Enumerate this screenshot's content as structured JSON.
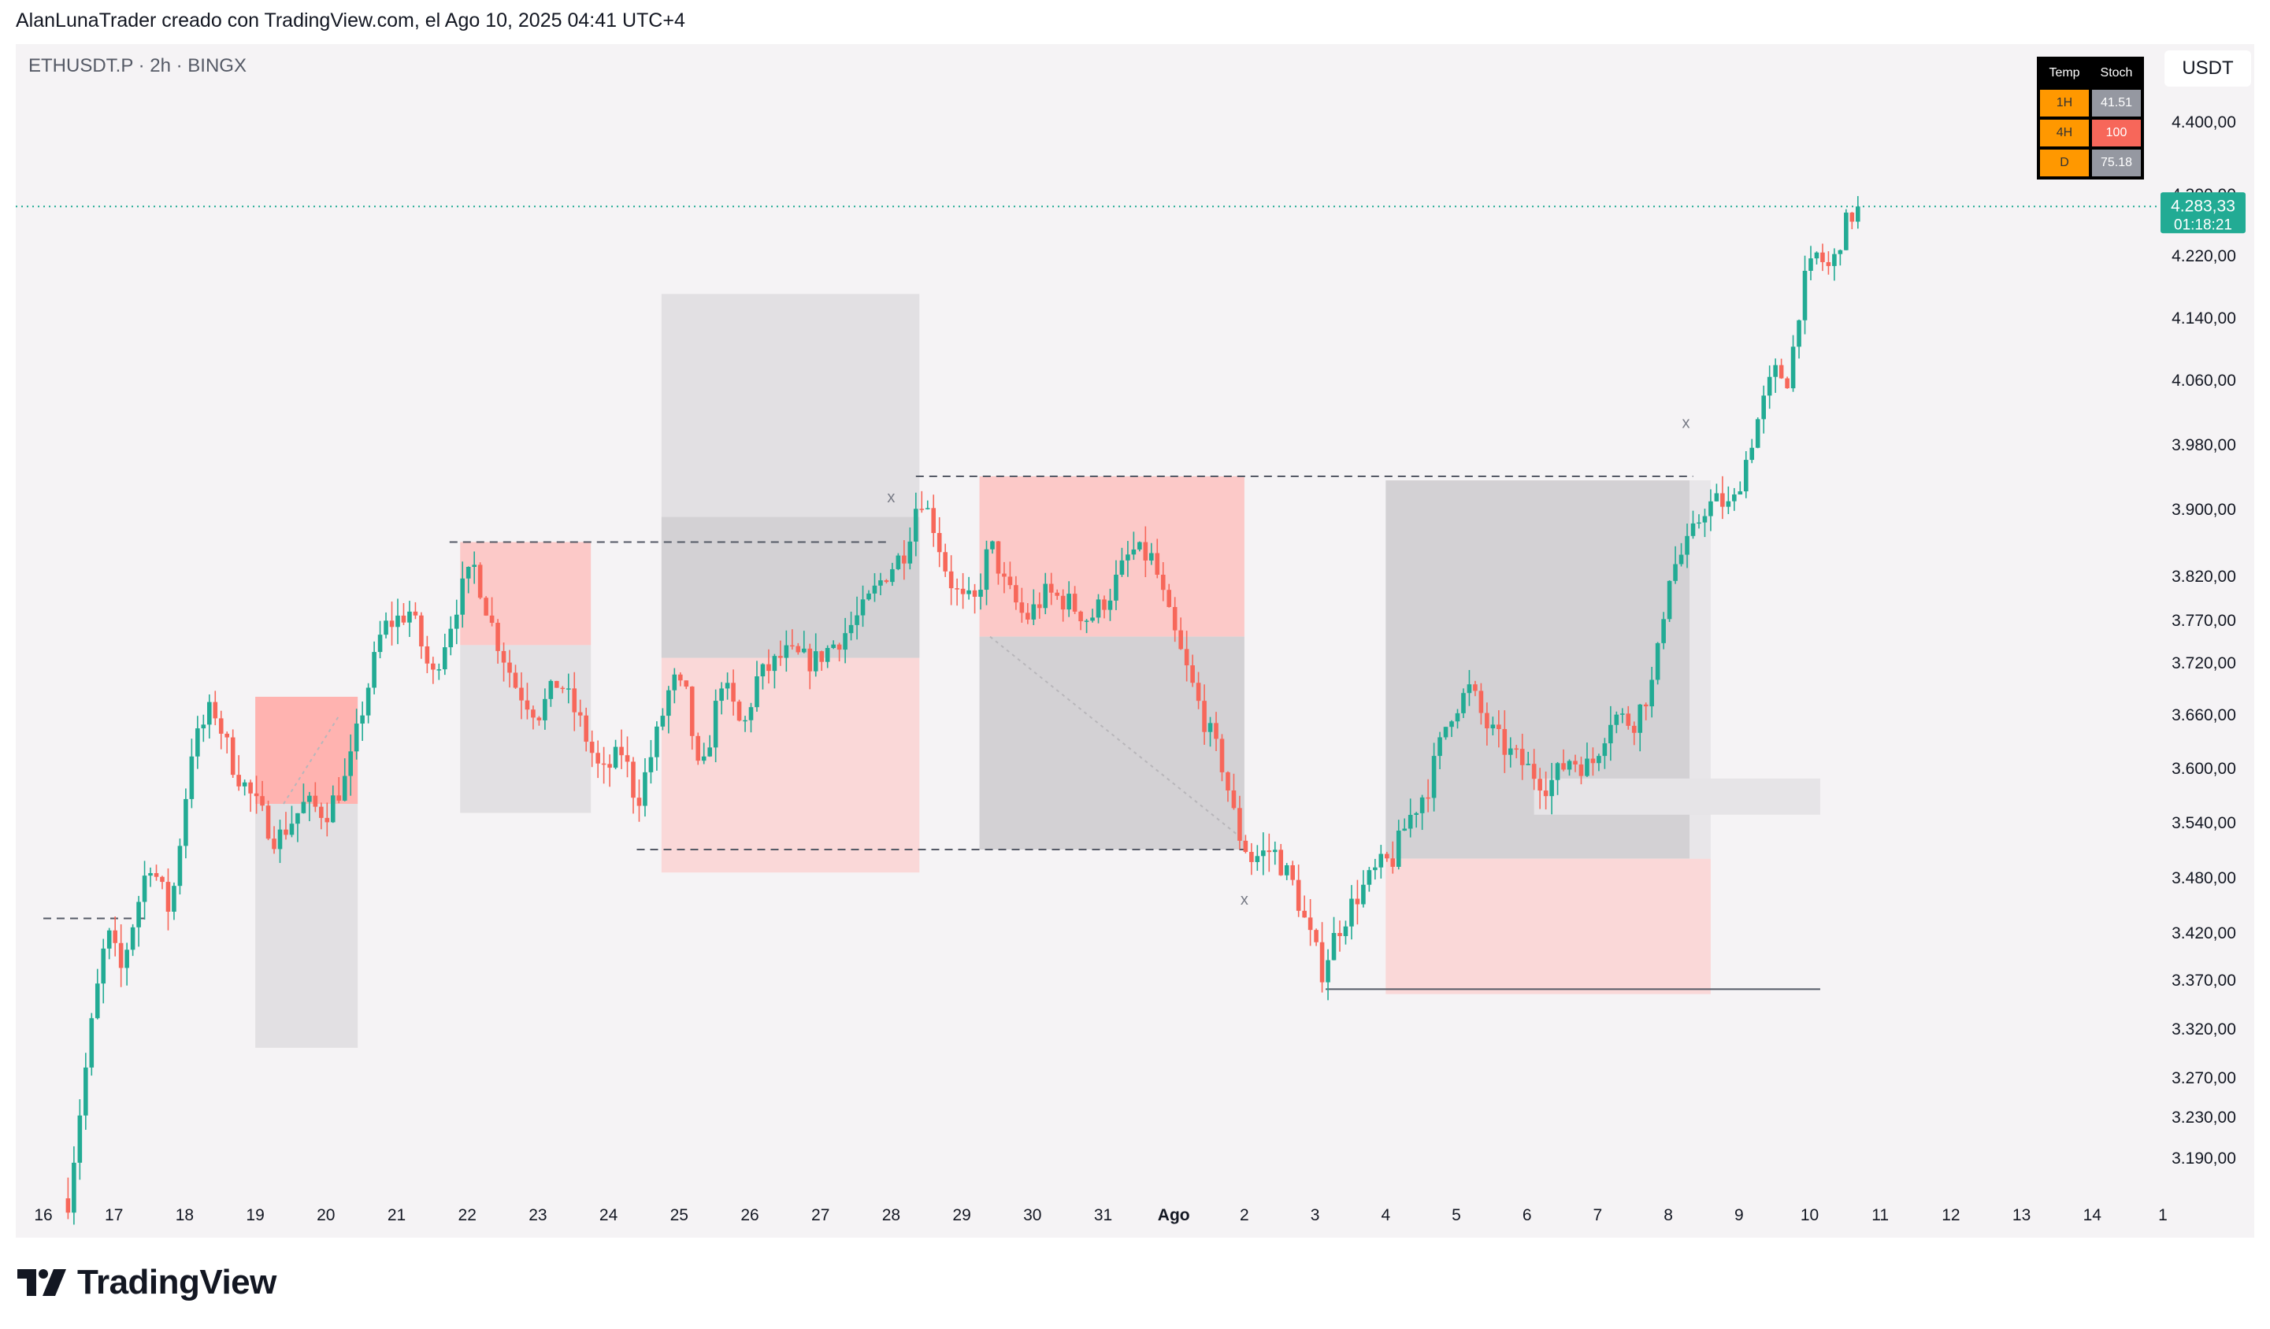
{
  "header": {
    "title": "AlanLunaTrader creado con TradingView.com, el Ago 10, 2025 04:41 UTC+4"
  },
  "symbol": {
    "label": "ETHUSDT.P · 2h · BINGX"
  },
  "currency_button": "USDT",
  "stoch_table": {
    "headers": [
      "Temp",
      "Stoch"
    ],
    "rows": [
      {
        "tf": "1H",
        "value": "41.51",
        "color": "#9598a1"
      },
      {
        "tf": "4H",
        "value": "100",
        "color": "#f7675a"
      },
      {
        "tf": "D",
        "value": "75.18",
        "color": "#9598a1"
      }
    ]
  },
  "price_badge": {
    "price": "4.283,33",
    "countdown": "01:18:21",
    "color": "#22ab94"
  },
  "logo": {
    "text": "TradingView",
    "icon": "tradingview-logo-icon"
  },
  "colors": {
    "up": "#22ab94",
    "down": "#f7675a",
    "bg": "#f5f3f5"
  },
  "chart_data": {
    "type": "candlestick",
    "y_ticks": [
      {
        "v": 4400,
        "label": "4.400,00"
      },
      {
        "v": 4300,
        "label": "4.300,00"
      },
      {
        "v": 4220,
        "label": "4.220,00"
      },
      {
        "v": 4140,
        "label": "4.140,00"
      },
      {
        "v": 4060,
        "label": "4.060,00"
      },
      {
        "v": 3980,
        "label": "3.980,00"
      },
      {
        "v": 3900,
        "label": "3.900,00"
      },
      {
        "v": 3820,
        "label": "3.820,00"
      },
      {
        "v": 3770,
        "label": "3.770,00"
      },
      {
        "v": 3720,
        "label": "3.720,00"
      },
      {
        "v": 3660,
        "label": "3.660,00"
      },
      {
        "v": 3600,
        "label": "3.600,00"
      },
      {
        "v": 3540,
        "label": "3.540,00"
      },
      {
        "v": 3480,
        "label": "3.480,00"
      },
      {
        "v": 3420,
        "label": "3.420,00"
      },
      {
        "v": 3370,
        "label": "3.370,00"
      },
      {
        "v": 3320,
        "label": "3.320,00"
      },
      {
        "v": 3270,
        "label": "3.270,00"
      },
      {
        "v": 3230,
        "label": "3.230,00"
      },
      {
        "v": 3190,
        "label": "3.190,00"
      }
    ],
    "x_ticks": [
      {
        "day": 16,
        "label": "16"
      },
      {
        "day": 17,
        "label": "17"
      },
      {
        "day": 18,
        "label": "18"
      },
      {
        "day": 19,
        "label": "19"
      },
      {
        "day": 20,
        "label": "20"
      },
      {
        "day": 21,
        "label": "21"
      },
      {
        "day": 22,
        "label": "22"
      },
      {
        "day": 23,
        "label": "23"
      },
      {
        "day": 24,
        "label": "24"
      },
      {
        "day": 25,
        "label": "25"
      },
      {
        "day": 26,
        "label": "26"
      },
      {
        "day": 27,
        "label": "27"
      },
      {
        "day": 28,
        "label": "28"
      },
      {
        "day": 29,
        "label": "29"
      },
      {
        "day": 30,
        "label": "30"
      },
      {
        "day": 31,
        "label": "31"
      },
      {
        "day": 32,
        "label": "Ago"
      },
      {
        "day": 33,
        "label": "2"
      },
      {
        "day": 34,
        "label": "3"
      },
      {
        "day": 35,
        "label": "4"
      },
      {
        "day": 36,
        "label": "5"
      },
      {
        "day": 37,
        "label": "6"
      },
      {
        "day": 38,
        "label": "7"
      },
      {
        "day": 39,
        "label": "8"
      },
      {
        "day": 40,
        "label": "9"
      },
      {
        "day": 41,
        "label": "10"
      },
      {
        "day": 42,
        "label": "11"
      },
      {
        "day": 43,
        "label": "12"
      },
      {
        "day": 44,
        "label": "13"
      },
      {
        "day": 45,
        "label": "14"
      },
      {
        "day": 46,
        "label": "1"
      }
    ],
    "last_price": 4283.33,
    "path": [
      [
        16.35,
        3150
      ],
      [
        16.7,
        3330
      ],
      [
        16.9,
        3420
      ],
      [
        17.1,
        3380
      ],
      [
        17.5,
        3500
      ],
      [
        17.8,
        3440
      ],
      [
        18.1,
        3620
      ],
      [
        18.4,
        3670
      ],
      [
        18.7,
        3600
      ],
      [
        19.0,
        3560
      ],
      [
        19.3,
        3520
      ],
      [
        19.7,
        3560
      ],
      [
        20.0,
        3550
      ],
      [
        20.3,
        3590
      ],
      [
        20.5,
        3660
      ],
      [
        20.8,
        3760
      ],
      [
        21.2,
        3780
      ],
      [
        21.5,
        3700
      ],
      [
        21.9,
        3800
      ],
      [
        22.1,
        3830
      ],
      [
        22.4,
        3750
      ],
      [
        22.7,
        3690
      ],
      [
        23.0,
        3660
      ],
      [
        23.3,
        3700
      ],
      [
        23.6,
        3650
      ],
      [
        23.9,
        3590
      ],
      [
        24.2,
        3620
      ],
      [
        24.4,
        3560
      ],
      [
        24.7,
        3640
      ],
      [
        24.9,
        3700
      ],
      [
        25.1,
        3680
      ],
      [
        25.3,
        3580
      ],
      [
        25.6,
        3700
      ],
      [
        25.9,
        3640
      ],
      [
        26.1,
        3700
      ],
      [
        26.5,
        3730
      ],
      [
        26.9,
        3720
      ],
      [
        27.3,
        3750
      ],
      [
        27.6,
        3780
      ],
      [
        27.9,
        3820
      ],
      [
        28.2,
        3850
      ],
      [
        28.4,
        3920
      ],
      [
        28.6,
        3880
      ],
      [
        28.8,
        3820
      ],
      [
        29.0,
        3790
      ],
      [
        29.2,
        3790
      ],
      [
        29.4,
        3860
      ],
      [
        29.6,
        3810
      ],
      [
        29.9,
        3770
      ],
      [
        30.2,
        3800
      ],
      [
        30.5,
        3790
      ],
      [
        30.8,
        3770
      ],
      [
        31.1,
        3800
      ],
      [
        31.4,
        3850
      ],
      [
        31.7,
        3840
      ],
      [
        31.9,
        3780
      ],
      [
        32.1,
        3730
      ],
      [
        32.4,
        3660
      ],
      [
        32.7,
        3600
      ],
      [
        32.9,
        3530
      ],
      [
        33.1,
        3500
      ],
      [
        33.4,
        3510
      ],
      [
        33.7,
        3470
      ],
      [
        33.9,
        3420
      ],
      [
        34.1,
        3380
      ],
      [
        34.3,
        3420
      ],
      [
        34.6,
        3460
      ],
      [
        34.9,
        3490
      ],
      [
        35.1,
        3500
      ],
      [
        35.3,
        3540
      ],
      [
        35.6,
        3580
      ],
      [
        35.9,
        3660
      ],
      [
        36.2,
        3690
      ],
      [
        36.4,
        3650
      ],
      [
        36.7,
        3620
      ],
      [
        37.0,
        3600
      ],
      [
        37.3,
        3580
      ],
      [
        37.6,
        3610
      ],
      [
        37.9,
        3600
      ],
      [
        38.2,
        3660
      ],
      [
        38.5,
        3650
      ],
      [
        38.8,
        3700
      ],
      [
        39.0,
        3820
      ],
      [
        39.3,
        3860
      ],
      [
        39.5,
        3900
      ],
      [
        39.7,
        3910
      ],
      [
        39.9,
        3900
      ],
      [
        40.1,
        3960
      ],
      [
        40.3,
        4020
      ],
      [
        40.5,
        4070
      ],
      [
        40.7,
        4060
      ],
      [
        40.9,
        4180
      ],
      [
        41.1,
        4220
      ],
      [
        41.3,
        4200
      ],
      [
        41.5,
        4260
      ],
      [
        41.7,
        4283
      ]
    ],
    "zones": [
      {
        "x0": 19.0,
        "x1": 20.45,
        "y0": 3560,
        "y1": 3680,
        "color": "#ffb3b0",
        "opacity": 1
      },
      {
        "x0": 19.0,
        "x1": 20.45,
        "y0": 3300,
        "y1": 3560,
        "color": "#e2e0e3",
        "opacity": 1
      },
      {
        "x0": 21.9,
        "x1": 23.75,
        "y0": 3740,
        "y1": 3860,
        "color": "#fcc9c8",
        "opacity": 1
      },
      {
        "x0": 21.9,
        "x1": 23.75,
        "y0": 3550,
        "y1": 3740,
        "color": "#e2e0e3",
        "opacity": 1
      },
      {
        "x0": 24.75,
        "x1": 28.4,
        "y0": 3725,
        "y1": 4170,
        "color": "#e2e0e3",
        "opacity": 1
      },
      {
        "x0": 24.75,
        "x1": 28.4,
        "y0": 3725,
        "y1": 3890,
        "color": "#d3d1d4",
        "opacity": 1
      },
      {
        "x0": 24.75,
        "x1": 28.4,
        "y0": 3485,
        "y1": 3725,
        "color": "#fad8d8",
        "opacity": 1
      },
      {
        "x0": 29.25,
        "x1": 33.0,
        "y0": 3750,
        "y1": 3940,
        "color": "#fcc9c8",
        "opacity": 1
      },
      {
        "x0": 29.25,
        "x1": 33.0,
        "y0": 3510,
        "y1": 3750,
        "color": "#d3d1d4",
        "opacity": 1
      },
      {
        "x0": 35.0,
        "x1": 39.3,
        "y0": 3500,
        "y1": 3935,
        "color": "#d3d1d4",
        "opacity": 1
      },
      {
        "x0": 35.0,
        "x1": 39.6,
        "y0": 3355,
        "y1": 3500,
        "color": "#fad8d8",
        "opacity": 1
      },
      {
        "x0": 39.3,
        "x1": 39.6,
        "y0": 3500,
        "y1": 3935,
        "color": "#e8e6e9",
        "opacity": 1
      },
      {
        "x0": 37.1,
        "x1": 41.15,
        "y0": 3548,
        "y1": 3588,
        "color": "#e6e4e7",
        "opacity": 1
      }
    ],
    "lines": [
      {
        "x0": 16.0,
        "x1": 17.5,
        "y": 3435,
        "dash": true
      },
      {
        "x0": 21.75,
        "x1": 28.0,
        "y": 3860,
        "dash": true
      },
      {
        "x0": 24.4,
        "x1": 33.0,
        "y": 3510,
        "dash": true
      },
      {
        "x0": 28.35,
        "x1": 39.35,
        "y": 3940,
        "dash": true
      },
      {
        "x0": 34.15,
        "x1": 41.15,
        "y": 3360,
        "dash": false
      }
    ],
    "markers": [
      {
        "day": 28.0,
        "v": 3908,
        "label": "x"
      },
      {
        "day": 33.0,
        "v": 3450,
        "label": "x"
      },
      {
        "day": 39.25,
        "v": 4000,
        "label": "x"
      }
    ]
  }
}
